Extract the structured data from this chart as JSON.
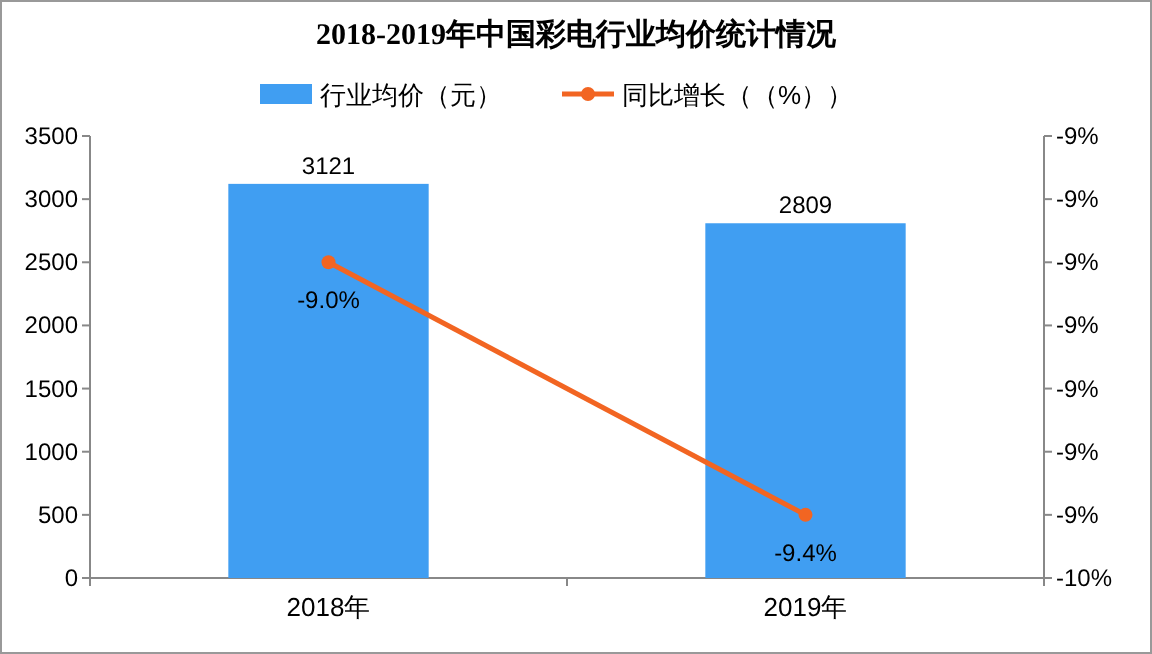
{
  "chart_data": {
    "type": "bar",
    "title": "2018-2019年中国彩电行业均价统计情况",
    "categories": [
      "2018年",
      "2019年"
    ],
    "series": [
      {
        "name": "行业均价（元）",
        "color": "#409ef2",
        "values": [
          3121,
          2809
        ],
        "value_labels": [
          "3121",
          "2809"
        ]
      },
      {
        "name": "同比增长（（%））",
        "type": "line",
        "axis": "y2",
        "color": "#f26522",
        "values": [
          -9.0,
          -9.4
        ],
        "value_labels": [
          "-9.0%",
          "-9.4%"
        ]
      }
    ],
    "ylim": [
      0,
      3500
    ],
    "yticks": [
      0,
      500,
      1000,
      1500,
      2000,
      2500,
      3000,
      3500
    ],
    "y2lim": [
      -9.5,
      -8.8
    ],
    "y2ticks": [
      {
        "value": -9.5,
        "label": "-10%"
      },
      {
        "value": -9.4,
        "label": "-9%"
      },
      {
        "value": -9.3,
        "label": "-9%"
      },
      {
        "value": -9.2,
        "label": "-9%"
      },
      {
        "value": -9.1,
        "label": "-9%"
      },
      {
        "value": -9.0,
        "label": "-9%"
      },
      {
        "value": -8.9,
        "label": "-9%"
      },
      {
        "value": -8.8,
        "label": "-9%"
      }
    ],
    "legend": "top",
    "marker": "circle",
    "grid": false
  }
}
